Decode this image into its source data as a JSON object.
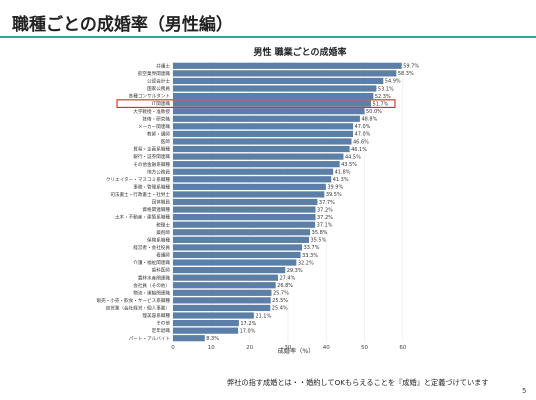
{
  "slide": {
    "title": "職種ごとの成婚率（男性編）",
    "footnote": "弊社の指す成婚とは・・婚約してOKもらえることを『成婚』と定義づけています",
    "page_number": "5"
  },
  "colors": {
    "bar": "#5b7fa6",
    "highlight": "#e02020",
    "accent": "#2aa79b",
    "grid": "#e9e9e9"
  },
  "chart_data": {
    "type": "bar",
    "orientation": "horizontal",
    "title": "男性 職業ごとの成婚率",
    "xlabel": "成婚率（%）",
    "ylabel": "",
    "xlim": [
      0,
      65
    ],
    "xticks": [
      0,
      10,
      20,
      30,
      40,
      50,
      60
    ],
    "grid": true,
    "highlighted_category": "IT関連職",
    "categories": [
      "弁護士",
      "航空業界関連職",
      "公認会計士",
      "国家公務員",
      "各種コンサルタント",
      "IT関連職",
      "大学教授・准教授",
      "技術・研究職",
      "メーカー関連職",
      "教師・講師",
      "医師",
      "貿易・企画系職種",
      "銀行・証券関連職",
      "その他金融系職種",
      "地方公務員",
      "クリエイター・マスコミ系職種",
      "事務・管理系職種",
      "司法書士・行政書士・社労士",
      "団体職員",
      "資格関連職種",
      "土木・不動産・建築系職種",
      "税理士",
      "薬剤師",
      "保険系職種",
      "経営者・会社役員",
      "看護師",
      "介護・福祉関連職",
      "歯科医師",
      "農林水産関連職",
      "会社員（その他）",
      "物流・運輸関連職",
      "販売・小売・飲食・サービス系職種",
      "自営業（会社経営・個人事業）",
      "理美容系職種",
      "その他",
      "定年退職",
      "パート・アルバイト"
    ],
    "values": [
      59.7,
      58.3,
      54.9,
      53.1,
      52.3,
      51.7,
      50.0,
      48.8,
      47.0,
      47.0,
      46.6,
      46.1,
      44.5,
      43.5,
      41.8,
      41.3,
      39.9,
      39.5,
      37.7,
      37.2,
      37.2,
      37.1,
      35.8,
      35.5,
      33.7,
      33.3,
      32.2,
      29.3,
      27.4,
      26.8,
      25.7,
      25.5,
      25.4,
      21.1,
      17.2,
      17.0,
      8.3
    ],
    "value_labels": [
      "59.7%",
      "58.3%",
      "54.9%",
      "53.1%",
      "52.3%",
      "51.7%",
      "50.0%",
      "48.8%",
      "47.0%",
      "47.0%",
      "46.6%",
      "46.1%",
      "44.5%",
      "43.5%",
      "41.8%",
      "41.3%",
      "39.9%",
      "39.5%",
      "37.7%",
      "37.2%",
      "37.2%",
      "37.1%",
      "35.8%",
      "35.5%",
      "33.7%",
      "33.3%",
      "32.2%",
      "29.3%",
      "27.4%",
      "26.8%",
      "25.7%",
      "25.5%",
      "25.4%",
      "21.1%",
      "17.2%",
      "17.0%",
      "8.3%"
    ]
  }
}
